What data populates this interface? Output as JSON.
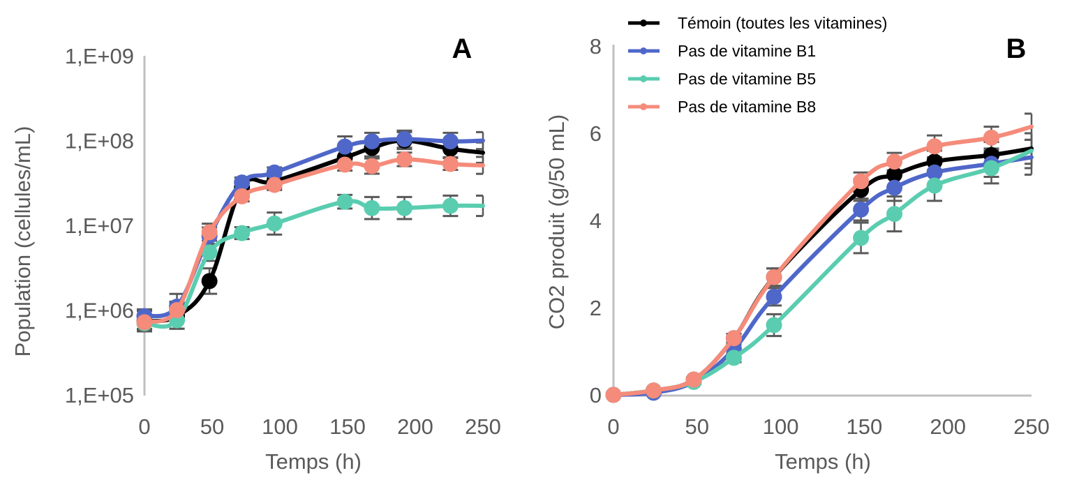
{
  "chart_data": [
    {
      "type": "line",
      "panel_label": "A",
      "title": "",
      "xlabel": "Temps (h)",
      "ylabel": "Population (cellules/mL)",
      "yscale": "log",
      "xlim": [
        0,
        250
      ],
      "ylim": [
        100000,
        1000000000
      ],
      "xticks": [
        0,
        50,
        100,
        150,
        200,
        250
      ],
      "xtick_labels": [
        "0",
        "50",
        "100",
        "150",
        "200",
        "250"
      ],
      "yticks": [
        100000,
        1000000,
        10000000,
        100000000,
        1000000000
      ],
      "ytick_labels": [
        "1,E+05",
        "1,E+06",
        "1,E+07",
        "1,E+08",
        "1,E+09"
      ],
      "grid": false,
      "x": [
        0,
        24,
        48,
        72,
        96,
        148,
        168,
        192,
        226,
        250
      ],
      "series": [
        {
          "name": "Témoin (toutes les vitamines)",
          "color": "#000000",
          "values": [
            740000,
            850000,
            2200000,
            28000000,
            33000000,
            63000000,
            82000000,
            100000000,
            80000000,
            72000000
          ],
          "errors": [
            0.12,
            0.15,
            0.15,
            0.08,
            0.08,
            0.1,
            0.1,
            0.1,
            0.1,
            0.12
          ]
        },
        {
          "name": "Pas de vitamine B1",
          "color": "#4F67C9",
          "values": [
            850000,
            1100000,
            7500000,
            32000000,
            42000000,
            85000000,
            98000000,
            104000000,
            98000000,
            100000000
          ],
          "errors": [
            0.08,
            0.15,
            0.1,
            0.06,
            0.06,
            0.12,
            0.1,
            0.1,
            0.1,
            0.1
          ]
        },
        {
          "name": "Pas de vitamine B5",
          "color": "#5ACDB0",
          "values": [
            700000,
            760000,
            4800000,
            8100000,
            10500000,
            19000000,
            16000000,
            16000000,
            17000000,
            17000000
          ],
          "errors": [
            0.08,
            0.1,
            0.1,
            0.07,
            0.13,
            0.08,
            0.13,
            0.13,
            0.12,
            0.12
          ]
        },
        {
          "name": "Pas de vitamine B8",
          "color": "#F58B7A",
          "values": [
            720000,
            1000000,
            8300000,
            22000000,
            30000000,
            52000000,
            50000000,
            60000000,
            53000000,
            51000000
          ],
          "errors": [
            0.08,
            0.1,
            0.1,
            0.06,
            0.06,
            0.07,
            0.09,
            0.08,
            0.07,
            0.1
          ]
        }
      ]
    },
    {
      "type": "line",
      "panel_label": "B",
      "title": "",
      "xlabel": "Temps (h)",
      "ylabel": "CO2 produit (g/50 mL)",
      "yscale": "linear",
      "xlim": [
        0,
        250
      ],
      "ylim": [
        0,
        8
      ],
      "xticks": [
        0,
        50,
        100,
        150,
        200,
        250
      ],
      "xtick_labels": [
        "0",
        "50",
        "100",
        "150",
        "200",
        "250"
      ],
      "yticks": [
        0,
        2,
        4,
        6,
        8
      ],
      "ytick_labels": [
        "0",
        "2",
        "4",
        "6",
        "8"
      ],
      "grid": false,
      "legend_position": "top",
      "x": [
        0,
        24,
        48,
        72,
        96,
        148,
        168,
        192,
        226,
        250
      ],
      "series": [
        {
          "name": "Témoin (toutes les vitamines)",
          "color": "#000000",
          "values": [
            0,
            0.1,
            0.35,
            1.3,
            2.7,
            4.7,
            5.05,
            5.35,
            5.5,
            5.65
          ],
          "errors": [
            0,
            0.05,
            0.05,
            0.1,
            0.2,
            0.25,
            0.3,
            0.25,
            0.3,
            0.35
          ]
        },
        {
          "name": "Pas de vitamine B1",
          "color": "#4F67C9",
          "values": [
            0,
            0.05,
            0.3,
            1.05,
            2.25,
            4.25,
            4.75,
            5.1,
            5.3,
            5.45
          ],
          "errors": [
            0,
            0.05,
            0.05,
            0.1,
            0.2,
            0.25,
            0.3,
            0.3,
            0.3,
            0.4
          ]
        },
        {
          "name": "Pas de vitamine B5",
          "color": "#5ACDB0",
          "values": [
            0,
            0.1,
            0.3,
            0.85,
            1.6,
            3.6,
            4.15,
            4.8,
            5.2,
            5.6
          ],
          "errors": [
            0,
            0.05,
            0.05,
            0.1,
            0.25,
            0.35,
            0.4,
            0.35,
            0.35,
            0.4
          ]
        },
        {
          "name": "Pas de vitamine B8",
          "color": "#F58B7A",
          "values": [
            0,
            0.1,
            0.35,
            1.3,
            2.7,
            4.9,
            5.35,
            5.7,
            5.9,
            6.15
          ],
          "errors": [
            0,
            0.05,
            0.05,
            0.1,
            0.2,
            0.2,
            0.2,
            0.25,
            0.25,
            0.3
          ]
        }
      ]
    }
  ],
  "legend": {
    "items": [
      {
        "label": "Témoin (toutes les vitamines)",
        "color": "#000000"
      },
      {
        "label": "Pas de vitamine B1",
        "color": "#4F67C9"
      },
      {
        "label": "Pas de vitamine B5",
        "color": "#5ACDB0"
      },
      {
        "label": "Pas de vitamine B8",
        "color": "#F58B7A"
      }
    ]
  },
  "colors": {
    "axis": "#BFBFBF",
    "tick_text": "#595959",
    "error_bar": "#595959"
  }
}
